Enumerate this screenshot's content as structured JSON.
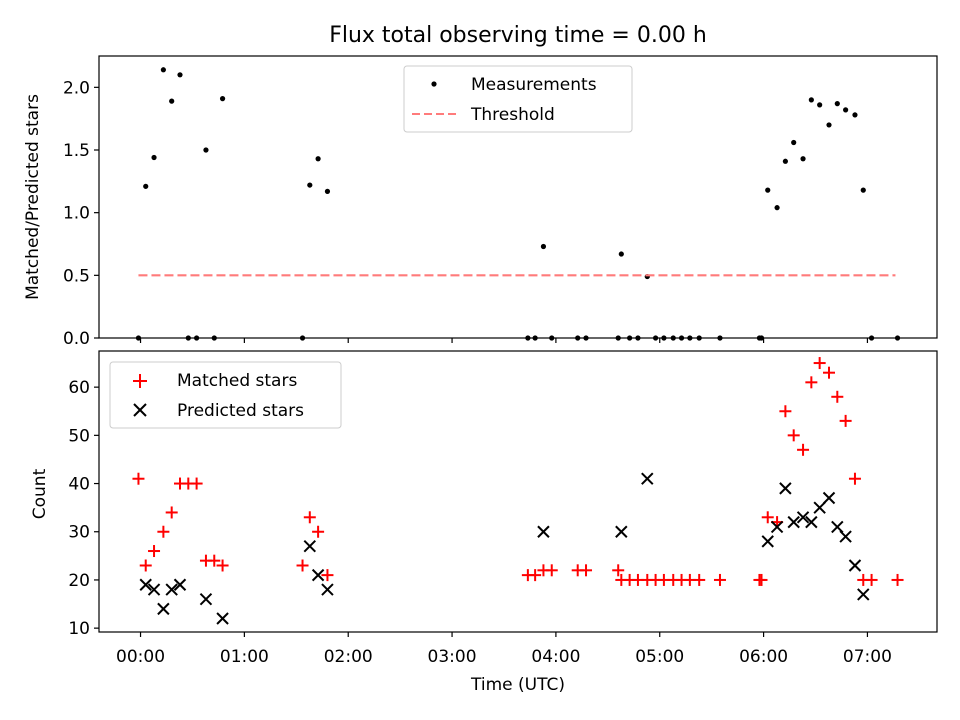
{
  "title": "Flux total observing time = 0.00 h",
  "x_axis": {
    "label": "Time (UTC)",
    "range_hours": [
      -0.4,
      7.67
    ],
    "tick_hours": [
      0,
      1,
      2,
      3,
      4,
      5,
      6,
      7
    ],
    "tick_labels": [
      "00:00",
      "01:00",
      "02:00",
      "03:00",
      "04:00",
      "05:00",
      "06:00",
      "07:00"
    ]
  },
  "chart_data": [
    {
      "type": "scatter",
      "ylabel": "Matched/Predicted stars",
      "ylim": [
        0,
        2.25
      ],
      "yticks": [
        0.0,
        0.5,
        1.0,
        1.5,
        2.0
      ],
      "ytick_labels": [
        "0.0",
        "0.5",
        "1.0",
        "1.5",
        "2.0"
      ],
      "legend_position": "upper center",
      "series": [
        {
          "name": "Measurements",
          "style": "dot",
          "color": "#000000",
          "x": [
            -0.02,
            0.05,
            0.13,
            0.22,
            0.3,
            0.38,
            0.46,
            0.54,
            0.63,
            0.71,
            0.79,
            1.56,
            1.63,
            1.71,
            1.8,
            3.73,
            3.8,
            3.88,
            3.96,
            4.21,
            4.29,
            4.6,
            4.63,
            4.71,
            4.79,
            4.88,
            4.96,
            5.04,
            5.13,
            5.21,
            5.29,
            5.38,
            5.58,
            5.96,
            5.98,
            6.04,
            6.13,
            6.21,
            6.29,
            6.38,
            6.46,
            6.54,
            6.63,
            6.71,
            6.79,
            6.88,
            6.96,
            7.04,
            7.29
          ],
          "y": [
            0.0,
            1.21,
            1.44,
            2.14,
            1.89,
            2.1,
            0.0,
            0.0,
            1.5,
            0.0,
            1.91,
            0.0,
            1.22,
            1.43,
            1.17,
            0.0,
            0.0,
            0.73,
            0.0,
            0.0,
            0.0,
            0.0,
            0.67,
            0.0,
            0.0,
            0.49,
            0.0,
            0.0,
            0.0,
            0.0,
            0.0,
            0.0,
            0.0,
            0.0,
            0.0,
            1.18,
            1.04,
            1.41,
            1.56,
            1.43,
            1.9,
            1.86,
            1.7,
            1.87,
            1.82,
            1.78,
            1.18,
            0.0,
            0.0
          ]
        },
        {
          "name": "Threshold",
          "style": "dashed-line",
          "color": "#ff7b7b",
          "x": [
            -0.02,
            7.27
          ],
          "y": [
            0.5,
            0.5
          ]
        }
      ]
    },
    {
      "type": "scatter",
      "ylabel": "Count",
      "ylim": [
        9.2,
        67.5
      ],
      "yticks": [
        10,
        20,
        30,
        40,
        50,
        60
      ],
      "ytick_labels": [
        "10",
        "20",
        "30",
        "40",
        "50",
        "60"
      ],
      "legend_position": "upper left",
      "series": [
        {
          "name": "Matched stars",
          "style": "plus",
          "color": "#ff0000",
          "x": [
            -0.02,
            0.05,
            0.13,
            0.22,
            0.3,
            0.38,
            0.46,
            0.54,
            0.63,
            0.71,
            0.79,
            1.56,
            1.63,
            1.71,
            1.8,
            3.73,
            3.8,
            3.88,
            3.96,
            4.21,
            4.29,
            4.6,
            4.63,
            4.71,
            4.79,
            4.88,
            4.96,
            5.04,
            5.13,
            5.21,
            5.29,
            5.38,
            5.58,
            5.96,
            5.98,
            6.04,
            6.13,
            6.21,
            6.29,
            6.38,
            6.46,
            6.54,
            6.63,
            6.71,
            6.79,
            6.88,
            6.96,
            7.04,
            7.29
          ],
          "y": [
            41,
            23,
            26,
            30,
            34,
            40,
            40,
            40,
            24,
            24,
            23,
            23,
            33,
            30,
            21,
            21,
            21,
            22,
            22,
            22,
            22,
            22,
            20,
            20,
            20,
            20,
            20,
            20,
            20,
            20,
            20,
            20,
            20,
            20,
            20,
            33,
            32,
            55,
            50,
            47,
            61,
            65,
            63,
            58,
            53,
            41,
            20,
            20,
            20
          ]
        },
        {
          "name": "Predicted stars",
          "style": "x",
          "color": "#000000",
          "x": [
            0.05,
            0.13,
            0.22,
            0.3,
            0.38,
            0.63,
            0.79,
            1.63,
            1.71,
            1.8,
            3.88,
            4.63,
            4.88,
            6.04,
            6.13,
            6.21,
            6.29,
            6.38,
            6.46,
            6.54,
            6.63,
            6.71,
            6.79,
            6.88,
            6.96
          ],
          "y": [
            19,
            18,
            14,
            18,
            19,
            16,
            12,
            27,
            21,
            18,
            30,
            30,
            41,
            28,
            31,
            39,
            32,
            33,
            32,
            35,
            37,
            31,
            29,
            23,
            17
          ]
        }
      ]
    }
  ]
}
